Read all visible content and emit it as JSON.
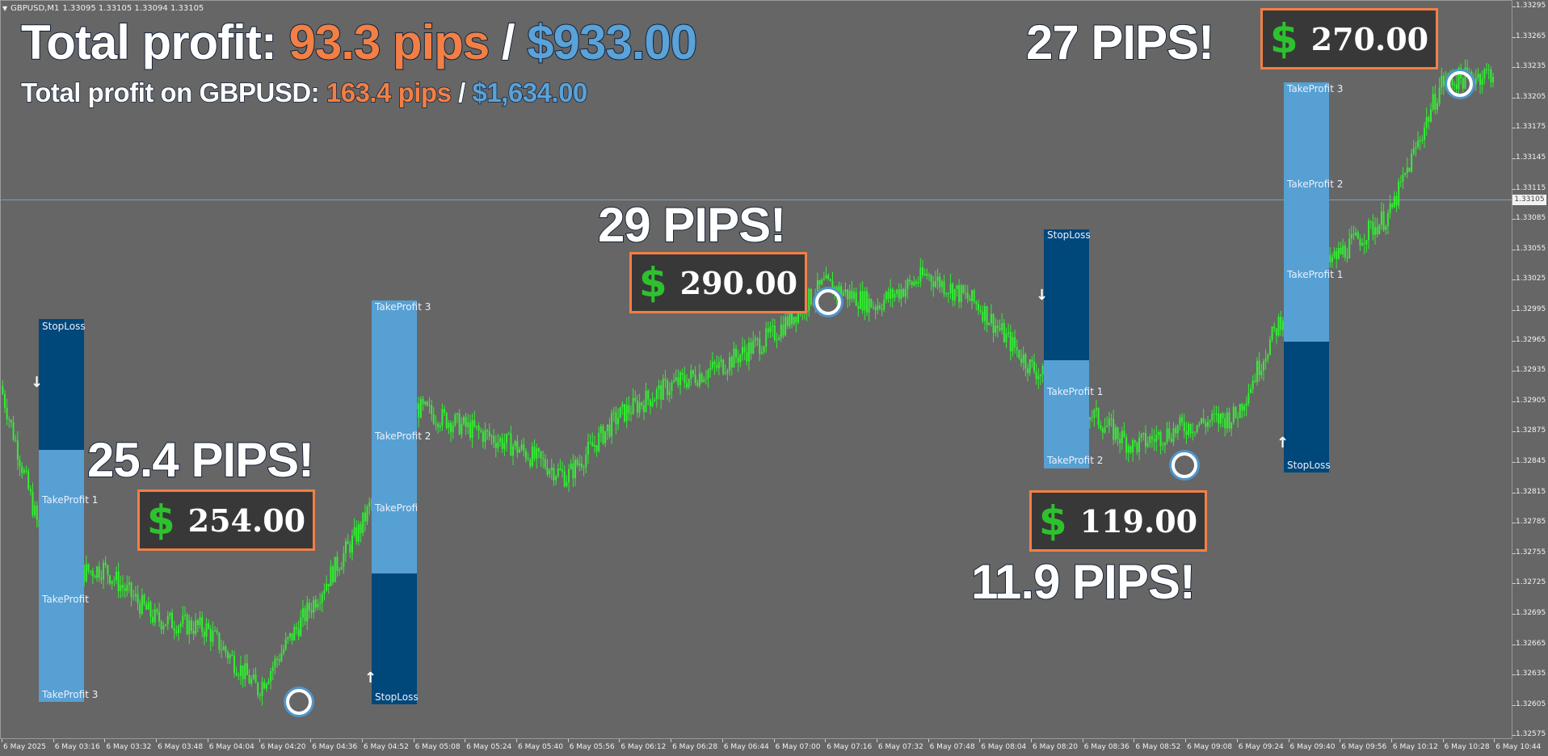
{
  "header": {
    "symbol": "GBPUSD,M1",
    "ohlc": "1.33095 1.33105 1.33094 1.33105"
  },
  "summary": {
    "line1_label": "Total profit: ",
    "line1_pips": "93.3 pips",
    "line1_sep": " / ",
    "line1_usd": "$933.00",
    "line2_label": "Total profit on GBPUSD: ",
    "line2_pips": "163.4 pips",
    "line2_sep": " / ",
    "line2_usd": "$1,634.00"
  },
  "trades": [
    {
      "pips": "25.4 PIPS!",
      "amount": "254.00"
    },
    {
      "pips": "29 PIPS!",
      "amount": "290.00"
    },
    {
      "pips": "11.9 PIPS!",
      "amount": "119.00"
    },
    {
      "pips": "27 PIPS!",
      "amount": "270.00"
    }
  ],
  "currency_symbol": "$",
  "levels": {
    "sl": "StopLoss",
    "tp1": "TakeProfit 1",
    "tp2": "TakeProfit 2",
    "tp3": "TakeProfit 3"
  },
  "y_axis": [
    "1.33295",
    "1.33265",
    "1.33235",
    "1.33205",
    "1.33175",
    "1.33145",
    "1.33115",
    "1.33085",
    "1.33055",
    "1.33025",
    "1.32995",
    "1.32965",
    "1.32935",
    "1.32905",
    "1.32875",
    "1.32845",
    "1.32815",
    "1.32785",
    "1.32755",
    "1.32725",
    "1.32695",
    "1.32665",
    "1.32635",
    "1.32605",
    "1.32575"
  ],
  "current_price": "1.33105",
  "x_axis": [
    "6 May 2025",
    "6 May 03:16",
    "6 May 03:32",
    "6 May 03:48",
    "6 May 04:04",
    "6 May 04:20",
    "6 May 04:36",
    "6 May 04:52",
    "6 May 05:08",
    "6 May 05:24",
    "6 May 05:40",
    "6 May 05:56",
    "6 May 06:12",
    "6 May 06:28",
    "6 May 06:44",
    "6 May 07:00",
    "6 May 07:16",
    "6 May 07:32",
    "6 May 07:48",
    "6 May 08:04",
    "6 May 08:20",
    "6 May 08:36",
    "6 May 08:52",
    "6 May 09:08",
    "6 May 09:24",
    "6 May 09:40",
    "6 May 09:56",
    "6 May 10:12",
    "6 May 10:28",
    "6 May 10:44"
  ],
  "colors": {
    "background": "#666666",
    "candles": "#33ee33",
    "sl_box": "#00477a",
    "tp_box": "#56a0d3",
    "pips_orange": "#f27f45",
    "usd_blue": "#5aa2d7",
    "dollar_green": "#2ec12e"
  },
  "chart_data": {
    "type": "line",
    "title": "",
    "xlabel": "",
    "ylabel": "",
    "ylim": [
      1.32575,
      1.33295
    ],
    "x": [
      "03:00",
      "03:16",
      "03:32",
      "03:48",
      "04:04",
      "04:20",
      "04:36",
      "04:52",
      "05:08",
      "05:24",
      "05:40",
      "05:56",
      "06:12",
      "06:28",
      "06:44",
      "07:00",
      "07:16",
      "07:32",
      "07:48",
      "08:04",
      "08:20",
      "08:36",
      "08:52",
      "09:08",
      "09:24",
      "09:40",
      "09:56",
      "10:12",
      "10:28",
      "10:44"
    ],
    "series": [
      {
        "values": [
          1.3292,
          1.3273,
          1.3274,
          1.3269,
          1.3268,
          1.3262,
          1.327,
          1.3278,
          1.329,
          1.3288,
          1.3286,
          1.3283,
          1.3289,
          1.3292,
          1.3294,
          1.3297,
          1.3302,
          1.33,
          1.3303,
          1.33,
          1.3294,
          1.329,
          1.3286,
          1.3288,
          1.3289,
          1.33,
          1.3305,
          1.3309,
          1.3322,
          1.3323
        ]
      }
    ],
    "markers": {
      "up_arrows": [
        "04:52",
        "09:24"
      ],
      "down_arrows": [
        "03:00",
        "08:04"
      ]
    },
    "grid": false
  }
}
